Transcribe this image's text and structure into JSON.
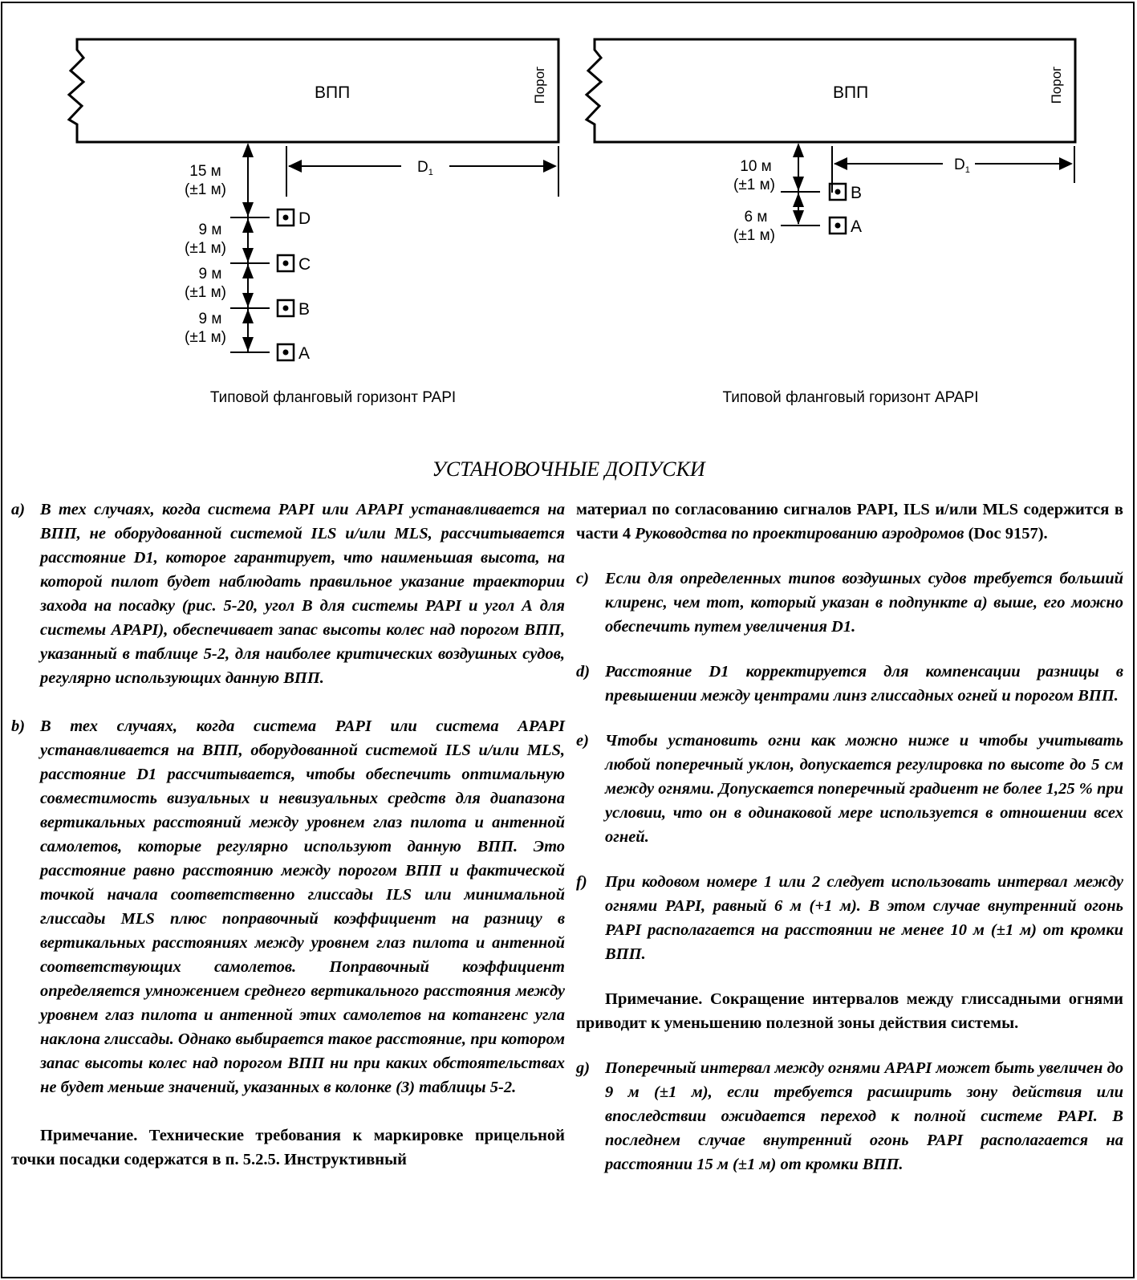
{
  "diagram": {
    "papi": {
      "runway_label": "ВПП",
      "threshold_label": "Порог",
      "distance_label": "D",
      "distance_sub": "1",
      "dims": [
        "15 м",
        "(±1 м)",
        "9 м",
        "(±1 м)",
        "9 м",
        "(±1 м)",
        "9 м",
        "(±1 м)"
      ],
      "lights": [
        "D",
        "C",
        "B",
        "A"
      ],
      "caption": "Типовой фланговый горизонт PAPI"
    },
    "apapi": {
      "runway_label": "ВПП",
      "threshold_label": "Порог",
      "distance_label": "D",
      "distance_sub": "1",
      "dims": [
        "10 м",
        "(±1 м)",
        "6 м",
        "(±1 м)"
      ],
      "lights": [
        "B",
        "A"
      ],
      "caption": "Типовой фланговый горизонт APAPI"
    }
  },
  "heading": "УСТАНОВОЧНЫЕ ДОПУСКИ",
  "items": {
    "a": {
      "label": "a)",
      "text": "В тех случаях, когда система PAPI или APAPI устанавливается на ВПП, не оборудованной системой ILS и/или MLS, рассчитывается расстояние D1, которое гарантирует, что наименьшая высота, на которой пилот будет наблюдать правильное указание траектории захода на посадку (рис. 5-20, угол В для системы PAPI и угол А для системы APAPI), обеспечивает запас высоты колес над порогом ВПП, указанный в таблице 5-2, для наиболее критических воздушных судов, регулярно использующих данную ВПП."
    },
    "b": {
      "label": "b)",
      "text": "В тех случаях, когда система PAPI или система APAPI устанавливается на ВПП, оборудованной системой ILS и/или MLS, расстояние D1 рассчитывается, чтобы обеспечить оптимальную совместимость визуальных и невизуальных средств для диапазона вертикальных расстояний между уровнем глаз пилота и антенной самолетов, которые регулярно используют данную ВПП. Это расстояние равно расстоянию между порогом ВПП и фактической точкой начала соответственно глиссады ILS или минимальной глиссады MLS плюс поправочный коэффициент на разницу в вертикальных расстояниях между уровнем глаз пилота и антенной соответствующих самолетов. Поправочный коэффициент определяется умножением среднего вертикального расстояния между уровнем глаз пилота и антенной этих самолетов на котангенс угла наклона глиссады. Однако выбирается такое расстояние, при котором запас высоты колес над порогом ВПП ни при каких обстоятельствах не будет меньше значений, указанных в колонке (3) таблицы 5-2."
    },
    "c": {
      "label": "c)",
      "text": "Если для определенных типов воздушных судов требуется больший клиренс, чем тот, который указан в подпункте а) выше, его можно обеспечить путем увеличения D1."
    },
    "d": {
      "label": "d)",
      "text": "Расстояние D1 корректируется для компенсации разницы в превышении между центрами линз глиссадных огней и порогом ВПП."
    },
    "e": {
      "label": "e)",
      "text": "Чтобы установить огни как можно ниже и чтобы учитывать любой поперечный уклон, допускается регулировка по высоте до 5 см между огнями. Допускается поперечный градиент не более 1,25 % при условии, что он в одинаковой мере используется в отношении всех огней."
    },
    "f": {
      "label": "f)",
      "text": "При кодовом номере 1 или 2 следует использовать интервал между огнями PAPI, равный 6 м (+1 м). В этом случае внутренний огонь PAPI располагается на расстоянии не менее 10 м (±1 м) от кромки ВПП."
    },
    "g": {
      "label": "g)",
      "text": "Поперечный интервал между огнями APAPI может быть увеличен до 9 м (±1 м), если требуется расширить зону действия или впоследствии ожидается переход к полной системе PAPI. В последнем случае внутренний огонь PAPI располагается на расстоянии 15 м (±1 м) от кромки ВПП."
    }
  },
  "note1": "Примечание. Технические требования к маркировке прицельной точки посадки содержатся в п. 5.2.5. Инструктивный",
  "cont_text": "материал по согласованию сигналов PAPI, ILS и/или MLS содержится в части 4",
  "cont_italic": "Руководства по проектированию аэродромов",
  "cont_doc": "(Doc 9157).",
  "note2": "Примечание. Сокращение интервалов между глиссадными огнями приводит к уменьшению полезной зоны действия системы."
}
